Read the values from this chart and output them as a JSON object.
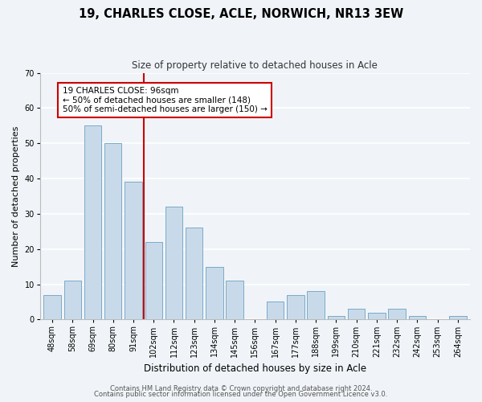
{
  "title": "19, CHARLES CLOSE, ACLE, NORWICH, NR13 3EW",
  "subtitle": "Size of property relative to detached houses in Acle",
  "xlabel": "Distribution of detached houses by size in Acle",
  "ylabel": "Number of detached properties",
  "categories": [
    "48sqm",
    "58sqm",
    "69sqm",
    "80sqm",
    "91sqm",
    "102sqm",
    "112sqm",
    "123sqm",
    "134sqm",
    "145sqm",
    "156sqm",
    "167sqm",
    "177sqm",
    "188sqm",
    "199sqm",
    "210sqm",
    "221sqm",
    "232sqm",
    "242sqm",
    "253sqm",
    "264sqm"
  ],
  "values": [
    7,
    11,
    55,
    50,
    39,
    22,
    32,
    26,
    15,
    11,
    0,
    5,
    7,
    8,
    1,
    3,
    2,
    3,
    1,
    0,
    1
  ],
  "bar_color": "#c8daea",
  "bar_edge_color": "#7aaac8",
  "vline_color": "#cc0000",
  "vline_pos": 4.5,
  "ylim": [
    0,
    70
  ],
  "yticks": [
    0,
    10,
    20,
    30,
    40,
    50,
    60,
    70
  ],
  "annotation_title": "19 CHARLES CLOSE: 96sqm",
  "annotation_line1": "← 50% of detached houses are smaller (148)",
  "annotation_line2": "50% of semi-detached houses are larger (150) →",
  "annotation_box_color": "#ffffff",
  "annotation_box_edge": "#cc0000",
  "footer1": "Contains HM Land Registry data © Crown copyright and database right 2024.",
  "footer2": "Contains public sector information licensed under the Open Government Licence v3.0.",
  "background_color": "#f0f4f8",
  "grid_color": "#ffffff",
  "title_fontsize": 10.5,
  "subtitle_fontsize": 8.5,
  "ylabel_fontsize": 8,
  "xlabel_fontsize": 8.5,
  "tick_fontsize": 7,
  "annot_fontsize": 7.5,
  "footer_fontsize": 6
}
